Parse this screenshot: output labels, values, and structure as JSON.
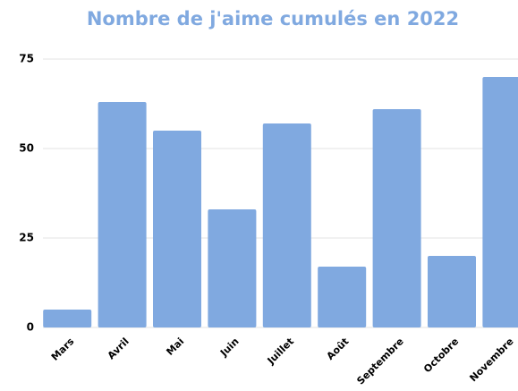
{
  "chart_data": {
    "type": "bar",
    "title": "Nombre de j'aime cumulés en 2022",
    "categories": [
      "Mars",
      "Avril",
      "Mai",
      "Juin",
      "Juillet",
      "Août",
      "Septembre",
      "Octobre",
      "Novembre"
    ],
    "values": [
      5,
      63,
      55,
      33,
      57,
      17,
      61,
      20,
      70
    ],
    "color": "#80a9e0",
    "ylim": [
      0,
      75
    ],
    "yticks": [
      0,
      25,
      50,
      75
    ],
    "grid": true
  }
}
